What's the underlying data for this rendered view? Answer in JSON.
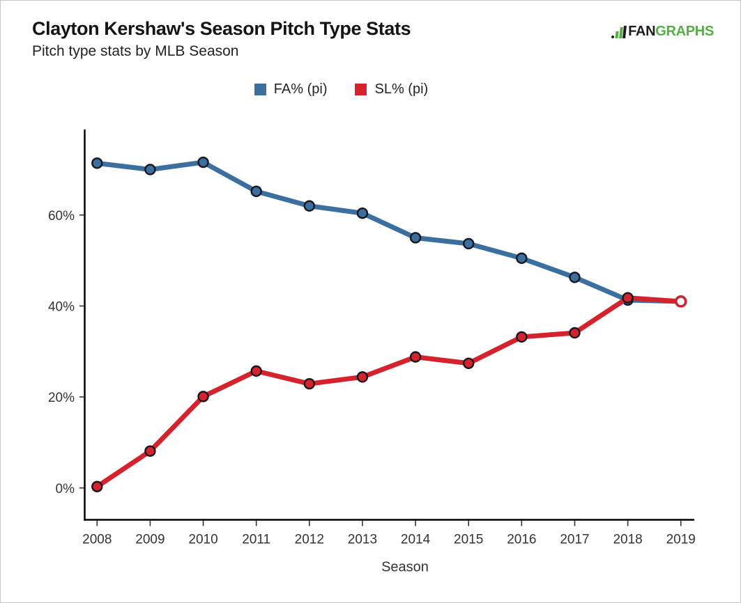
{
  "page": {
    "background": "#ffffff",
    "border_color": "#c6c6c6"
  },
  "header": {
    "title": "Clayton Kershaw's Season Pitch Type Stats",
    "subtitle": "Pitch type stats by MLB Season",
    "logo": {
      "fan": "FAN",
      "graphs": "GRAPHS",
      "green": "#52B043",
      "dark": "#1d1d1b"
    }
  },
  "legend": {
    "items": [
      {
        "label": "FA% (pi)",
        "color": "#3A6FA0"
      },
      {
        "label": "SL% (pi)",
        "color": "#D5232E"
      }
    ]
  },
  "chart_data": {
    "type": "line",
    "x": [
      2008,
      2009,
      2010,
      2011,
      2012,
      2013,
      2014,
      2015,
      2016,
      2017,
      2018,
      2019
    ],
    "series": [
      {
        "name": "FA% (pi)",
        "color": "#3A6FA0",
        "values": [
          71.4,
          70.0,
          71.6,
          65.2,
          62.0,
          60.4,
          55.0,
          53.7,
          50.5,
          46.3,
          41.3,
          41.0
        ],
        "last_point_open": true
      },
      {
        "name": "SL% (pi)",
        "color": "#D5232E",
        "values": [
          0.3,
          8.1,
          20.1,
          25.7,
          22.9,
          24.4,
          28.8,
          27.4,
          33.2,
          34.1,
          41.8,
          41.0
        ],
        "last_point_open": true
      }
    ],
    "xlabel": "Season",
    "ylabel": "",
    "yticks": [
      0,
      20,
      40,
      60
    ],
    "ytick_labels": [
      "0%",
      "20%",
      "40%",
      "60%"
    ],
    "ylim": [
      -7,
      78.8
    ],
    "grid": false,
    "legend_position": "top",
    "marker": "circle",
    "marker_stroke": "#16161d",
    "axis_color": "#000000",
    "tick_label_color": "#333333"
  }
}
